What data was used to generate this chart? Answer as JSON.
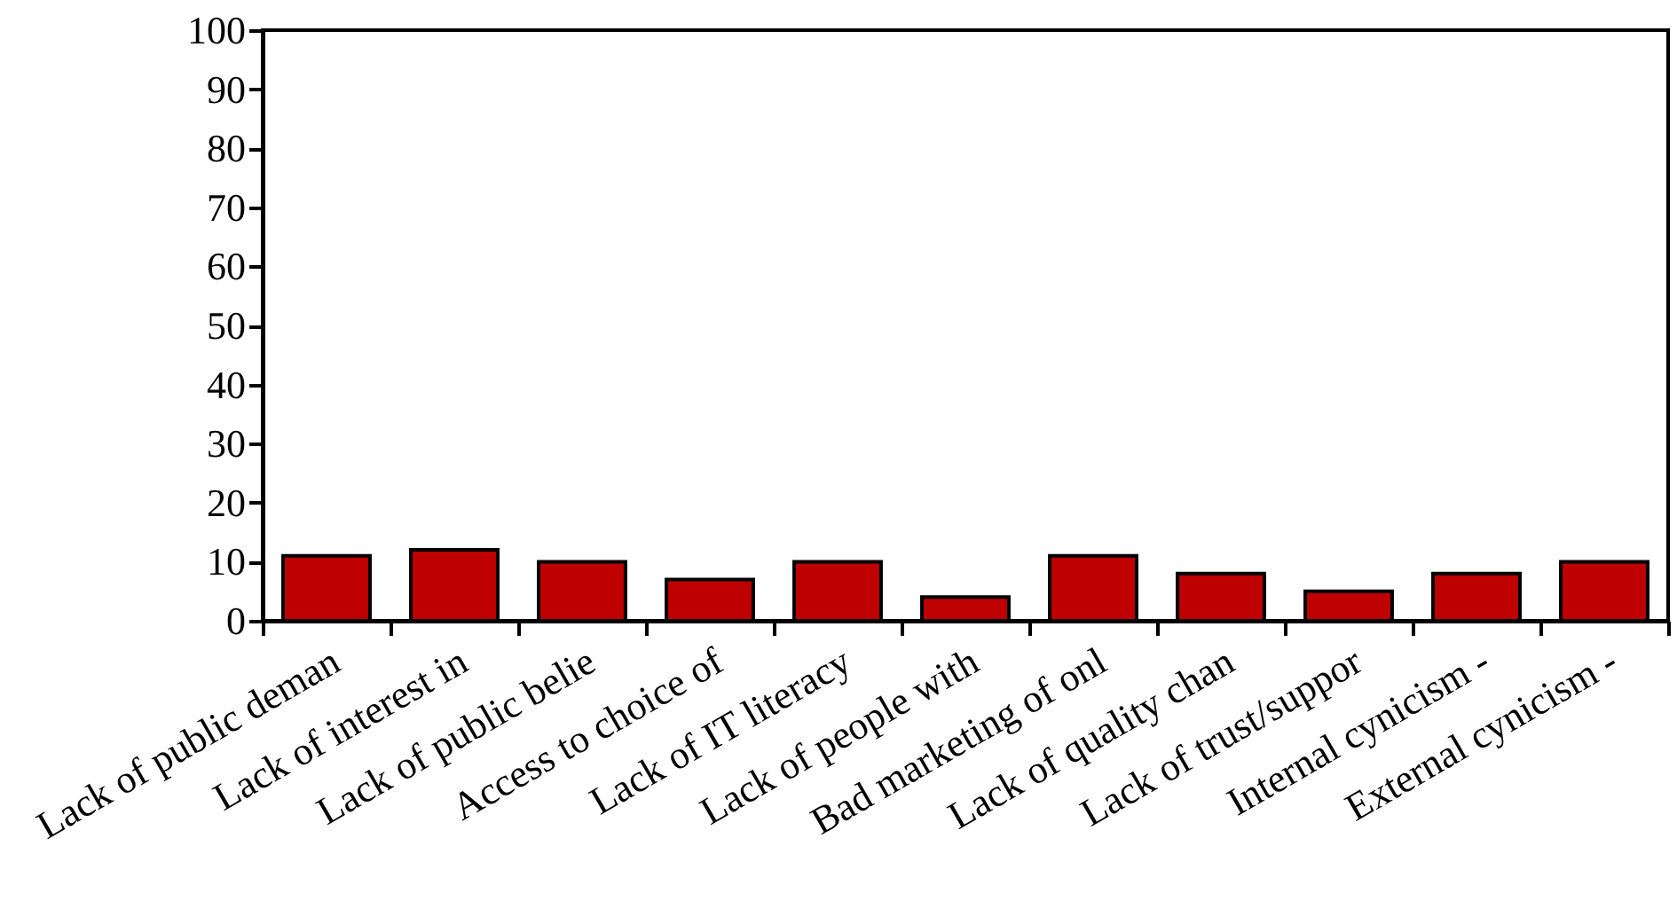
{
  "chart_data": {
    "type": "bar",
    "categories": [
      "Lack of public deman",
      "Lack of interest in",
      "Lack of public belie",
      "Access to choice of",
      "Lack of IT literacy",
      "Lack of people with",
      "Bad marketing of onl",
      "Lack of quality chan",
      "Lack of trust/suppor",
      "Internal cynicism -",
      "External cynicism -"
    ],
    "values": [
      11,
      12,
      10,
      7,
      10,
      4,
      11,
      8,
      5,
      8,
      10
    ],
    "color": "#bf0000",
    "ylim": [
      0,
      100
    ],
    "yticks": [
      0,
      10,
      20,
      30,
      40,
      50,
      60,
      70,
      80,
      90,
      100
    ],
    "grid": false
  }
}
